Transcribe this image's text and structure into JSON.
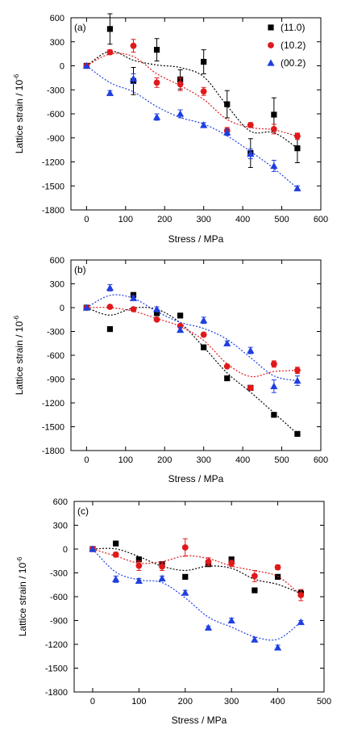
{
  "colors": {
    "s110": "#000000",
    "s102": "#e0191b",
    "s002": "#1f3fe0"
  },
  "legend": [
    "(11.0)",
    "(10.2)",
    "(00.2)"
  ],
  "chart_data": [
    {
      "type": "scatter",
      "panel_label": "(a)",
      "xlabel": "Stress / MPa",
      "ylabel": "Lattice strain / 10",
      "ylabel_exp": "-6",
      "xlim": [
        -40,
        600
      ],
      "ylim": [
        -1800,
        600
      ],
      "xticks": [
        0,
        100,
        200,
        300,
        400,
        500,
        600
      ],
      "yticks": [
        600,
        300,
        0,
        -300,
        -600,
        -900,
        -1200,
        -1500,
        -1800
      ],
      "legend_position": "top-right",
      "series": [
        {
          "name": "(11.0)",
          "marker": "square",
          "color": "#000000",
          "x": [
            0,
            60,
            120,
            180,
            240,
            300,
            360,
            420,
            480,
            540
          ],
          "y": [
            0,
            460,
            -190,
            200,
            -170,
            50,
            -480,
            -1090,
            -610,
            -1030
          ],
          "err": [
            0,
            190,
            170,
            140,
            120,
            150,
            170,
            180,
            210,
            180
          ]
        },
        {
          "name": "(10.2)",
          "marker": "circle",
          "color": "#e0191b",
          "x": [
            0,
            60,
            120,
            180,
            240,
            300,
            360,
            420,
            480,
            540
          ],
          "y": [
            0,
            170,
            250,
            -210,
            -230,
            -320,
            -810,
            -740,
            -790,
            -880
          ],
          "err": [
            0,
            30,
            80,
            60,
            80,
            50,
            40,
            30,
            60,
            40
          ]
        },
        {
          "name": "(00.2)",
          "marker": "triangle",
          "color": "#1f3fe0",
          "x": [
            0,
            60,
            120,
            180,
            240,
            300,
            360,
            420,
            480,
            540
          ],
          "y": [
            0,
            -340,
            -160,
            -640,
            -600,
            -740,
            -830,
            -1100,
            -1250,
            -1530
          ],
          "err": [
            0,
            30,
            60,
            40,
            50,
            30,
            40,
            60,
            70,
            30
          ]
        }
      ]
    },
    {
      "type": "scatter",
      "panel_label": "(b)",
      "xlabel": "Stress / MPa",
      "ylabel": "Lattice strain / 10",
      "ylabel_exp": "-6",
      "xlim": [
        -40,
        600
      ],
      "ylim": [
        -1800,
        600
      ],
      "xticks": [
        0,
        100,
        200,
        300,
        400,
        500,
        600
      ],
      "yticks": [
        600,
        300,
        0,
        -300,
        -600,
        -900,
        -1200,
        -1500,
        -1800
      ],
      "series": [
        {
          "name": "(11.0)",
          "marker": "square",
          "color": "#000000",
          "x": [
            0,
            60,
            120,
            180,
            240,
            300,
            360,
            420,
            480,
            540
          ],
          "y": [
            0,
            -270,
            160,
            -70,
            -100,
            -500,
            -890,
            -1010,
            -1350,
            -1590
          ],
          "err": [
            0,
            0,
            0,
            0,
            0,
            0,
            0,
            0,
            0,
            0
          ]
        },
        {
          "name": "(10.2)",
          "marker": "circle",
          "color": "#e0191b",
          "x": [
            0,
            60,
            120,
            180,
            240,
            300,
            360,
            420,
            480,
            540
          ],
          "y": [
            0,
            10,
            -20,
            -150,
            -230,
            -340,
            -740,
            -1010,
            -710,
            -790
          ],
          "err": [
            0,
            0,
            0,
            0,
            0,
            0,
            0,
            0,
            40,
            40
          ]
        },
        {
          "name": "(00.2)",
          "marker": "triangle",
          "color": "#1f3fe0",
          "x": [
            0,
            60,
            120,
            180,
            240,
            300,
            360,
            420,
            480,
            540
          ],
          "y": [
            0,
            250,
            120,
            -20,
            -280,
            -160,
            -450,
            -540,
            -990,
            -920
          ],
          "err": [
            0,
            40,
            30,
            30,
            30,
            40,
            30,
            40,
            80,
            60
          ]
        }
      ]
    },
    {
      "type": "scatter",
      "panel_label": "(c)",
      "xlabel": "Stress / MPa",
      "ylabel": "Lattice strain / 10",
      "ylabel_exp": "-6",
      "xlim": [
        -40,
        500
      ],
      "ylim": [
        -1800,
        600
      ],
      "xticks": [
        0,
        100,
        200,
        300,
        400,
        500
      ],
      "yticks": [
        600,
        300,
        0,
        -300,
        -600,
        -900,
        -1200,
        -1500,
        -1800
      ],
      "series": [
        {
          "name": "(11.0)",
          "marker": "square",
          "color": "#000000",
          "x": [
            0,
            50,
            100,
            150,
            200,
            250,
            300,
            350,
            400,
            450
          ],
          "y": [
            0,
            70,
            -130,
            -190,
            -350,
            -190,
            -130,
            -520,
            -350,
            -560
          ],
          "err": [
            0,
            0,
            0,
            0,
            0,
            0,
            0,
            0,
            0,
            40
          ]
        },
        {
          "name": "(10.2)",
          "marker": "circle",
          "color": "#e0191b",
          "x": [
            0,
            50,
            100,
            150,
            200,
            250,
            300,
            350,
            400,
            450
          ],
          "y": [
            0,
            -70,
            -210,
            -220,
            20,
            -160,
            -180,
            -340,
            -230,
            -580
          ],
          "err": [
            0,
            30,
            60,
            50,
            110,
            50,
            40,
            70,
            30,
            70
          ]
        },
        {
          "name": "(00.2)",
          "marker": "triangle",
          "color": "#1f3fe0",
          "x": [
            0,
            50,
            100,
            150,
            200,
            250,
            300,
            350,
            400,
            450
          ],
          "y": [
            0,
            -380,
            -400,
            -370,
            -550,
            -990,
            -900,
            -1140,
            -1240,
            -920
          ],
          "err": [
            0,
            40,
            30,
            30,
            30,
            20,
            30,
            30,
            30,
            20
          ]
        }
      ]
    }
  ]
}
